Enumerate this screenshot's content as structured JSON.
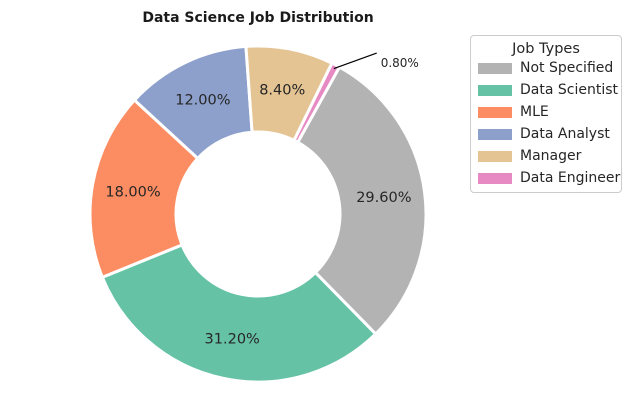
{
  "chart_data": {
    "type": "pie",
    "donut": true,
    "title": "Data Science Job Distribution",
    "slices": [
      {
        "label": "Not Specified",
        "value": 29.6,
        "display": "29.60%",
        "color": "#b3b3b3"
      },
      {
        "label": "Data Scientist",
        "value": 31.2,
        "display": "31.20%",
        "color": "#66c2a5"
      },
      {
        "label": "MLE",
        "value": 18.0,
        "display": "18.00%",
        "color": "#fc8d62"
      },
      {
        "label": "Data Analyst",
        "value": 12.0,
        "display": "12.00%",
        "color": "#8da0cb"
      },
      {
        "label": "Manager",
        "value": 8.4,
        "display": "8.40%",
        "color": "#e5c494"
      },
      {
        "label": "Data Engineer",
        "value": 0.8,
        "display": "0.80%",
        "color": "#e78ac3"
      }
    ],
    "legend": {
      "title": "Job Types",
      "placement": "right"
    }
  }
}
